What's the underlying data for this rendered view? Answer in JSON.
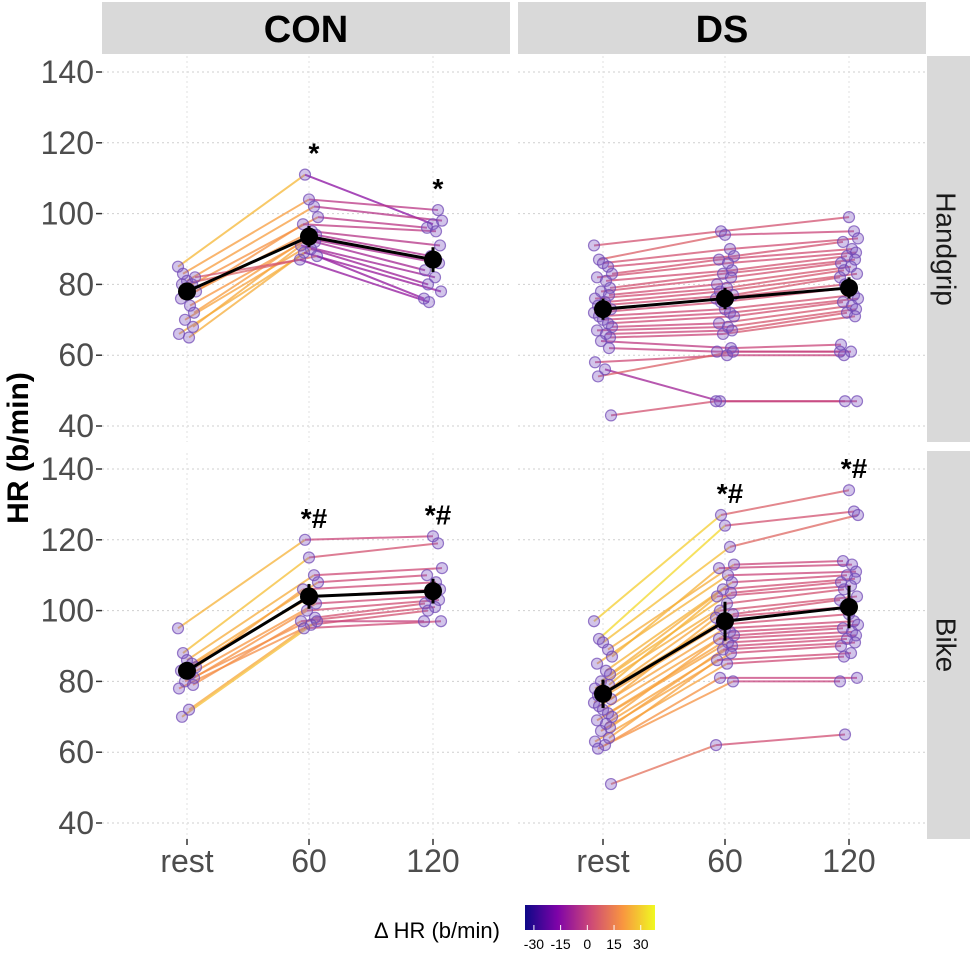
{
  "chart_data": {
    "type": "line",
    "ylabel": "HR (b/min)",
    "x_categories": [
      "rest",
      "60",
      "120"
    ],
    "ylim": [
      40,
      140
    ],
    "yticks": [
      40,
      60,
      80,
      100,
      120,
      140
    ],
    "grid": true,
    "columns": [
      "CON",
      "DS"
    ],
    "rows": [
      "Handgrip",
      "Bike"
    ],
    "legend": {
      "title": "Δ HR (b/min)",
      "ticks": [
        "-30",
        "-15",
        "0",
        "15",
        "30"
      ],
      "tick_values": [
        -30,
        -15,
        0,
        15,
        30
      ],
      "range": [
        -35,
        38
      ],
      "colors": [
        "#0d0887",
        "#7e03a8",
        "#cc4778",
        "#f89540",
        "#f0f921"
      ],
      "placement": "bottom"
    },
    "panels": [
      {
        "column": "CON",
        "row": "Handgrip",
        "mean": [
          78,
          93.5,
          87
        ],
        "error": [
          2.5,
          3,
          3.5
        ],
        "annotations": [
          "",
          "*",
          "*"
        ],
        "subjects": [
          [
            85,
            111,
            97
          ],
          [
            83,
            104,
            101
          ],
          [
            81,
            102,
            98
          ],
          [
            80,
            99,
            96
          ],
          [
            78,
            97,
            95
          ],
          [
            76,
            95,
            91
          ],
          [
            74,
            94,
            88
          ],
          [
            72,
            93,
            86
          ],
          [
            70,
            92,
            84
          ],
          [
            68,
            91,
            82
          ],
          [
            66,
            90,
            80
          ],
          [
            65,
            89,
            78
          ],
          [
            80,
            88,
            76
          ],
          [
            82,
            87,
            75
          ]
        ]
      },
      {
        "column": "DS",
        "row": "Handgrip",
        "mean": [
          73,
          76,
          79
        ],
        "error": [
          3,
          3,
          3
        ],
        "annotations": [
          "",
          "",
          ""
        ],
        "subjects": [
          [
            91,
            95,
            99
          ],
          [
            87,
            94,
            95
          ],
          [
            86,
            90,
            93
          ],
          [
            85,
            88,
            92
          ],
          [
            83,
            87,
            90
          ],
          [
            82,
            86,
            89
          ],
          [
            81,
            84,
            88
          ],
          [
            79,
            83,
            87
          ],
          [
            78,
            82,
            86
          ],
          [
            77,
            80,
            85
          ],
          [
            76,
            79,
            84
          ],
          [
            75,
            78,
            83
          ],
          [
            74,
            77,
            82
          ],
          [
            73,
            76,
            80
          ],
          [
            72,
            75,
            79
          ],
          [
            71,
            73,
            77
          ],
          [
            70,
            72,
            76
          ],
          [
            69,
            71,
            75
          ],
          [
            68,
            69,
            74
          ],
          [
            67,
            68,
            73
          ],
          [
            66,
            67,
            72
          ],
          [
            65,
            66,
            71
          ],
          [
            64,
            62,
            63
          ],
          [
            62,
            61,
            61
          ],
          [
            58,
            60,
            60
          ],
          [
            56,
            47,
            47
          ],
          [
            54,
            61,
            61
          ],
          [
            43,
            47,
            47
          ]
        ]
      },
      {
        "column": "CON",
        "row": "Bike",
        "mean": [
          83,
          104,
          105.5
        ],
        "error": [
          2,
          3.5,
          3.5
        ],
        "annotations": [
          "",
          "*#",
          "*#"
        ],
        "subjects": [
          [
            95,
            120,
            121
          ],
          [
            88,
            115,
            119
          ],
          [
            86,
            110,
            112
          ],
          [
            85,
            108,
            110
          ],
          [
            84,
            106,
            108
          ],
          [
            83,
            104,
            106
          ],
          [
            82,
            102,
            104
          ],
          [
            81,
            100,
            103
          ],
          [
            80,
            98,
            102
          ],
          [
            79,
            97,
            101
          ],
          [
            78,
            96,
            100
          ],
          [
            72,
            95,
            97
          ],
          [
            70,
            97,
            97
          ]
        ]
      },
      {
        "column": "DS",
        "row": "Bike",
        "mean": [
          76.5,
          97,
          101
        ],
        "error": [
          4,
          5.5,
          6
        ],
        "annotations": [
          "",
          "*#",
          "*#"
        ],
        "subjects": [
          [
            97,
            127,
            134
          ],
          [
            92,
            124,
            128
          ],
          [
            91,
            118,
            127
          ],
          [
            89,
            113,
            114
          ],
          [
            87,
            112,
            113
          ],
          [
            85,
            110,
            111
          ],
          [
            83,
            108,
            110
          ],
          [
            82,
            106,
            109
          ],
          [
            80,
            105,
            108
          ],
          [
            79,
            104,
            107
          ],
          [
            78,
            102,
            106
          ],
          [
            77,
            100,
            104
          ],
          [
            76,
            99,
            103
          ],
          [
            75,
            98,
            101
          ],
          [
            74,
            96,
            99
          ],
          [
            73,
            95,
            97
          ],
          [
            72,
            94,
            96
          ],
          [
            71,
            93,
            95
          ],
          [
            70,
            92,
            94
          ],
          [
            69,
            91,
            93
          ],
          [
            68,
            90,
            92
          ],
          [
            67,
            89,
            91
          ],
          [
            66,
            88,
            90
          ],
          [
            64,
            86,
            88
          ],
          [
            63,
            85,
            87
          ],
          [
            62,
            81,
            81
          ],
          [
            61,
            80,
            80
          ],
          [
            51,
            62,
            65
          ]
        ]
      }
    ]
  }
}
